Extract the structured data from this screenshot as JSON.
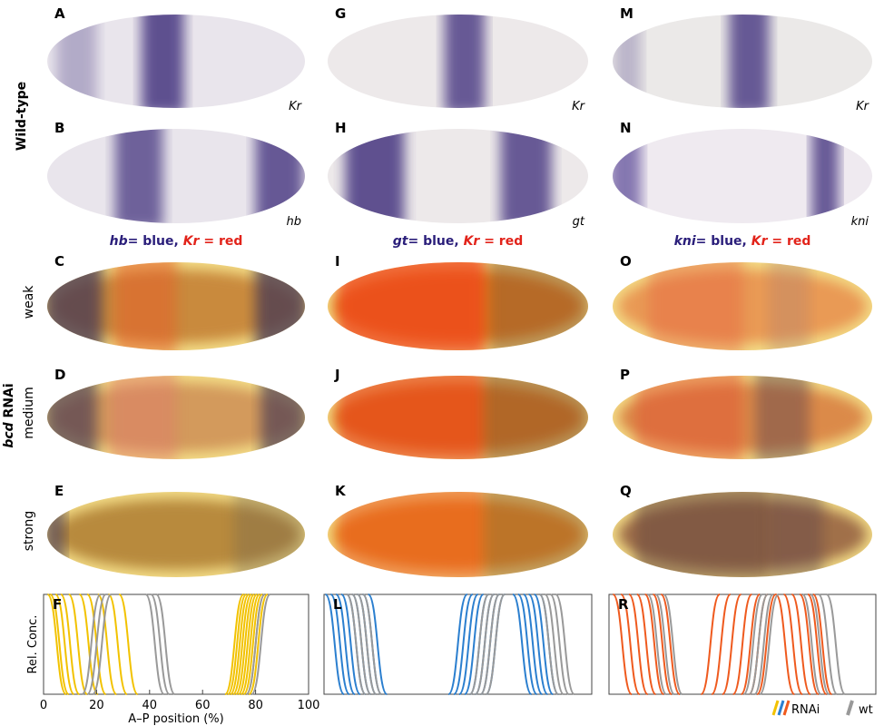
{
  "panels": [
    {
      "letter": "A",
      "gene": "Kr"
    },
    {
      "letter": "B",
      "gene": "hb"
    },
    {
      "letter": "C"
    },
    {
      "letter": "D"
    },
    {
      "letter": "E"
    },
    {
      "letter": "G",
      "gene": "Kr"
    },
    {
      "letter": "H",
      "gene": "gt"
    },
    {
      "letter": "I"
    },
    {
      "letter": "J"
    },
    {
      "letter": "K"
    },
    {
      "letter": "M",
      "gene": "Kr"
    },
    {
      "letter": "N",
      "gene": "kni"
    },
    {
      "letter": "O"
    },
    {
      "letter": "P"
    },
    {
      "letter": "Q"
    }
  ],
  "row_labels": {
    "wild_type": "Wild-type",
    "bcd": "bcd",
    "rnai": "RNAi",
    "weak": "weak",
    "medium": "medium",
    "strong": "strong"
  },
  "headers": [
    {
      "gene": "hb",
      "blue": "= blue,",
      "gene2": "Kr",
      "red": "= red"
    },
    {
      "gene": "gt",
      "blue": "= blue,",
      "gene2": "Kr",
      "red": "= red"
    },
    {
      "gene": "kni",
      "blue": "= blue,",
      "gene2": "Kr",
      "red": "= red"
    }
  ],
  "plots": [
    {
      "letter": "F",
      "ylabel": "Rel. Conc.",
      "xlabel": "A–P position (%)",
      "xlim": [
        0,
        100
      ],
      "xticks": [
        0,
        20,
        40,
        60,
        80,
        100
      ],
      "series": [
        {
          "color": "#f2c200",
          "falling": [
            5,
            6,
            8,
            10,
            13,
            17,
            20,
            24,
            28,
            32
          ],
          "rising": [
            72,
            73,
            74,
            75,
            76,
            77,
            78,
            79,
            80,
            81
          ]
        },
        {
          "color": "#999999",
          "falling": [
            42,
            44,
            46
          ],
          "rising": [
            18,
            20,
            22,
            80,
            82
          ]
        }
      ]
    },
    {
      "letter": "L",
      "xlim": [
        0,
        100
      ],
      "series": [
        {
          "color": "#2b7fcf",
          "falling": [
            4,
            6,
            8,
            10,
            12,
            14,
            16,
            18,
            20
          ],
          "rising": [
            50,
            52,
            54,
            56,
            58,
            60,
            62,
            64
          ],
          "falling2": [
            74,
            76,
            78,
            80,
            82,
            84
          ]
        },
        {
          "color": "#999999",
          "falling": [
            12,
            14,
            16,
            18
          ],
          "rising": [
            58,
            60,
            62,
            64
          ],
          "falling2": [
            84,
            86,
            88,
            90
          ]
        }
      ]
    },
    {
      "letter": "R",
      "xlim": [
        0,
        100
      ],
      "series": [
        {
          "color": "#ef5a1e",
          "falling": [
            5,
            8,
            11,
            14,
            17,
            20,
            23
          ],
          "rising": [
            38,
            42,
            46,
            50,
            53,
            56,
            59
          ],
          "falling2": [
            66,
            69,
            72,
            75,
            78,
            80
          ]
        },
        {
          "color": "#999999",
          "falling": [
            18,
            21,
            24
          ],
          "rising": [
            54,
            56,
            58,
            60
          ],
          "falling2": [
            76,
            79,
            82,
            85
          ]
        }
      ]
    }
  ],
  "legend": {
    "rnai": "RNAi",
    "wt": "wt"
  }
}
